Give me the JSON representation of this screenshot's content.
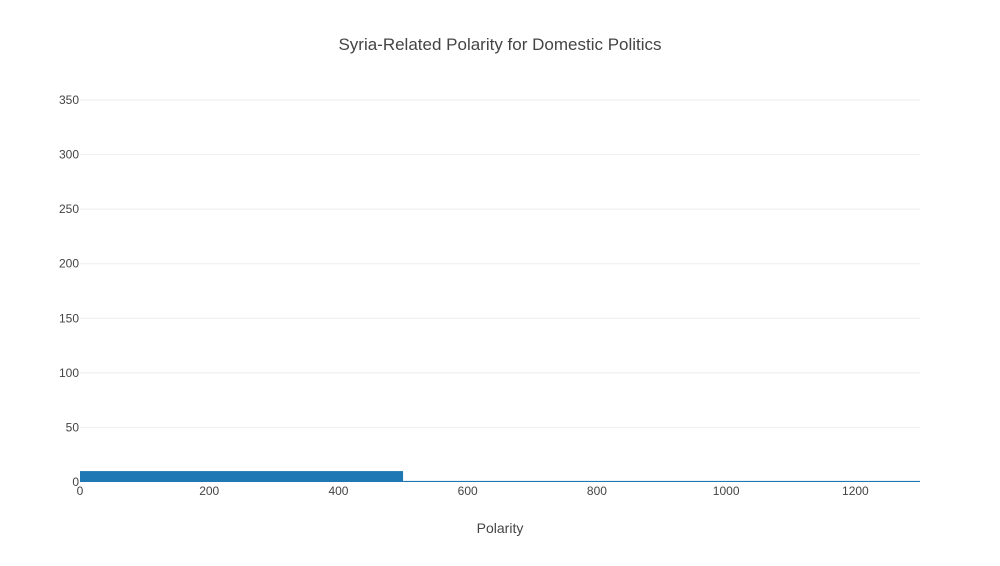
{
  "chart_data": {
    "type": "bar",
    "title": "Syria-Related Polarity for Domestic Politics",
    "xlabel": "Polarity",
    "ylabel": "",
    "xlim": [
      0,
      1300
    ],
    "ylim": [
      0,
      350
    ],
    "x_ticks": [
      0,
      200,
      400,
      600,
      800,
      1000,
      1200
    ],
    "y_ticks": [
      0,
      50,
      100,
      150,
      200,
      250,
      300,
      350
    ],
    "grid": true,
    "bars": [
      {
        "x0": 0,
        "x1": 500,
        "value": 10
      },
      {
        "x0": 500,
        "x1": 1300,
        "value": 1
      }
    ],
    "colors": {
      "bar": "#1f77b4",
      "grid": "#eeeeee",
      "text": "#444444"
    }
  }
}
